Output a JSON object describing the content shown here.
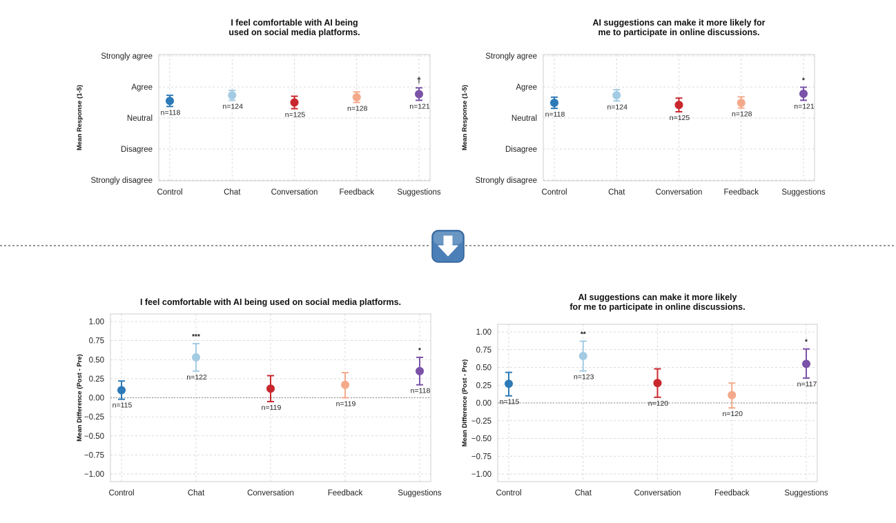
{
  "divider": {
    "arrow_icon": "down-arrow-icon",
    "arrow_bg_color": "#4a7fb8",
    "line_color": "#555555"
  },
  "chart_data": [
    {
      "type": "errorbar",
      "panel": "top-left",
      "title": "I feel comfortable with AI being\nused on social media platforms.",
      "xlabel": "",
      "ylabel": "Mean Response (1-5)",
      "categories": [
        "Control",
        "Chat",
        "Conversation",
        "Feedback",
        "Suggestions"
      ],
      "values": [
        3.55,
        3.73,
        3.5,
        3.67,
        3.77
      ],
      "ci_low": [
        3.37,
        3.57,
        3.3,
        3.5,
        3.57
      ],
      "ci_high": [
        3.73,
        3.89,
        3.7,
        3.84,
        3.97
      ],
      "n_labels": [
        "n=118",
        "n=124",
        "n=125",
        "n=128",
        "n=121"
      ],
      "significance": [
        "",
        "",
        "",
        "",
        "†"
      ],
      "colors": [
        "#2d7ab8",
        "#a3cbe3",
        "#c9272e",
        "#f4a98a",
        "#7a52a8"
      ],
      "ylim": [
        1,
        5
      ],
      "yticks": [
        1,
        2,
        3,
        4,
        5
      ],
      "ytick_labels": [
        "Strongly disagree",
        "Disagree",
        "Neutral",
        "Agree",
        "Strongly agree"
      ],
      "zero_line": false
    },
    {
      "type": "errorbar",
      "panel": "top-right",
      "title": "AI suggestions can make it more likely for\nme to participate in online discussions.",
      "xlabel": "",
      "ylabel": "Mean Response (1-5)",
      "categories": [
        "Control",
        "Chat",
        "Conversation",
        "Feedback",
        "Suggestions"
      ],
      "values": [
        3.49,
        3.73,
        3.42,
        3.49,
        3.78
      ],
      "ci_low": [
        3.31,
        3.55,
        3.2,
        3.32,
        3.57
      ],
      "ci_high": [
        3.67,
        3.91,
        3.64,
        3.68,
        3.99
      ],
      "n_labels": [
        "n=118",
        "n=124",
        "n=125",
        "n=128",
        "n=121"
      ],
      "significance": [
        "",
        "",
        "",
        "",
        "*"
      ],
      "colors": [
        "#2d7ab8",
        "#a3cbe3",
        "#c9272e",
        "#f4a98a",
        "#7a52a8"
      ],
      "ylim": [
        1,
        5
      ],
      "yticks": [
        1,
        2,
        3,
        4,
        5
      ],
      "ytick_labels": [
        "Strongly disagree",
        "Disagree",
        "Neutral",
        "Agree",
        "Strongly agree"
      ],
      "zero_line": false
    },
    {
      "type": "errorbar",
      "panel": "bottom-left",
      "title": "I feel comfortable with AI being used on social media platforms.",
      "xlabel": "",
      "ylabel": "Mean Difference (Post - Pre)",
      "categories": [
        "Control",
        "Chat",
        "Conversation",
        "Feedback",
        "Suggestions"
      ],
      "values": [
        0.1,
        0.53,
        0.12,
        0.17,
        0.35
      ],
      "ci_low": [
        -0.02,
        0.35,
        -0.05,
        0.0,
        0.17
      ],
      "ci_high": [
        0.22,
        0.71,
        0.29,
        0.33,
        0.53
      ],
      "n_labels": [
        "n=115",
        "n=122",
        "n=119",
        "n=119",
        "n=118"
      ],
      "significance": [
        "",
        "***",
        "",
        "",
        "*"
      ],
      "colors": [
        "#2d7ab8",
        "#a3cbe3",
        "#c9272e",
        "#f4a98a",
        "#7a52a8"
      ],
      "ylim": [
        -1.0,
        1.0
      ],
      "yticks": [
        -1.0,
        -0.75,
        -0.5,
        -0.25,
        0.0,
        0.25,
        0.5,
        0.75,
        1.0
      ],
      "ytick_labels": [
        "−1.00",
        "−0.75",
        "−0.50",
        "−0.25",
        "0.00",
        "0.25",
        "0.50",
        "0.75",
        "1.00"
      ],
      "zero_line": true
    },
    {
      "type": "errorbar",
      "panel": "bottom-right",
      "title": "AI suggestions can make it more likely\nfor me to participate in online discussions.",
      "xlabel": "",
      "ylabel": "Mean Difference (Post - Pre)",
      "categories": [
        "Control",
        "Chat",
        "Conversation",
        "Feedback",
        "Suggestions"
      ],
      "values": [
        0.27,
        0.66,
        0.28,
        0.11,
        0.55
      ],
      "ci_low": [
        0.1,
        0.45,
        0.08,
        -0.07,
        0.35
      ],
      "ci_high": [
        0.43,
        0.87,
        0.48,
        0.28,
        0.76
      ],
      "n_labels": [
        "n=115",
        "n=123",
        "n=120",
        "n=120",
        "n=117"
      ],
      "significance": [
        "",
        "**",
        "",
        "",
        "*"
      ],
      "colors": [
        "#2d7ab8",
        "#a3cbe3",
        "#c9272e",
        "#f4a98a",
        "#7a52a8"
      ],
      "ylim": [
        -1.0,
        1.0
      ],
      "yticks": [
        -1.0,
        -0.75,
        -0.5,
        -0.25,
        0.0,
        0.25,
        0.5,
        0.75,
        1.0
      ],
      "ytick_labels": [
        "−1.00",
        "−0.75",
        "−0.50",
        "−0.25",
        "0.00",
        "0.25",
        "0.50",
        "0.75",
        "1.00"
      ],
      "zero_line": true
    }
  ]
}
